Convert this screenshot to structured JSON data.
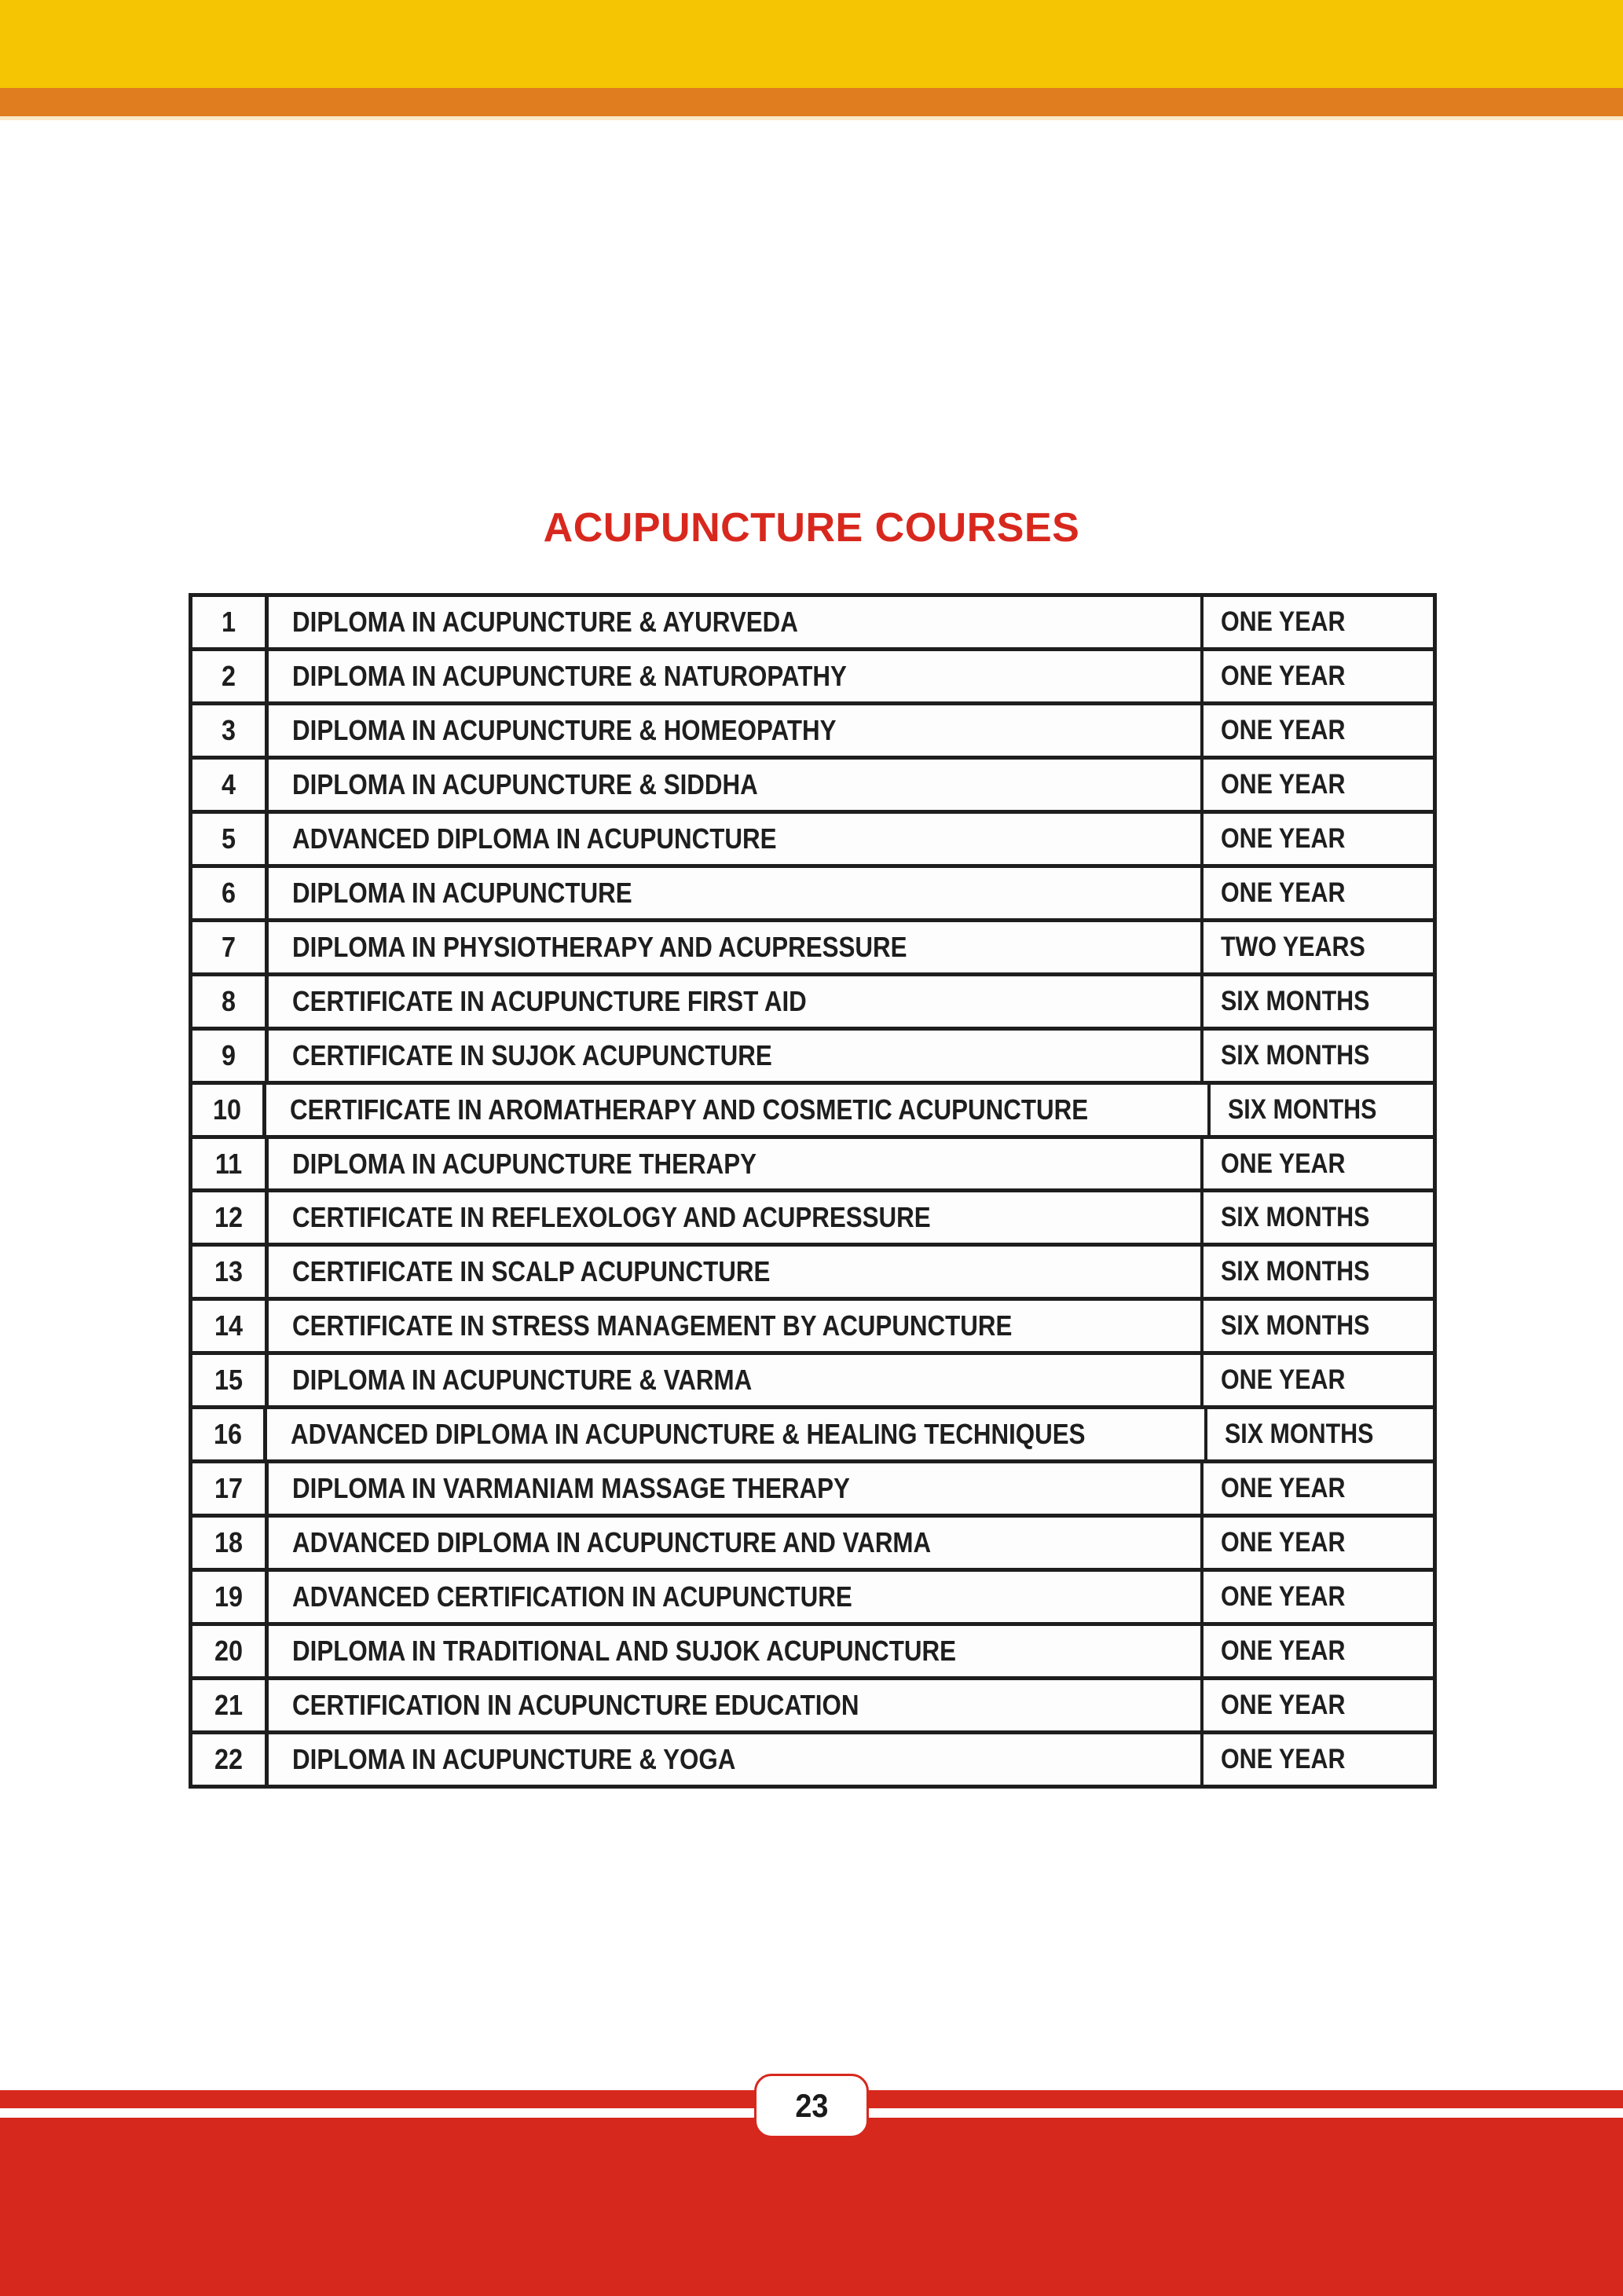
{
  "page": {
    "title": "ACUPUNCTURE COURSES",
    "page_number": "23"
  },
  "colors": {
    "yellow_bar": "#f5c402",
    "orange_bar": "#e07d1f",
    "red": "#d7281d",
    "title_red": "#d8281e",
    "table_border": "#1e1e1e"
  },
  "table": {
    "rows": [
      {
        "no": "1",
        "course": "DIPLOMA IN ACUPUNCTURE & AYURVEDA",
        "duration": "ONE YEAR"
      },
      {
        "no": "2",
        "course": "DIPLOMA IN ACUPUNCTURE & NATUROPATHY",
        "duration": "ONE YEAR"
      },
      {
        "no": "3",
        "course": "DIPLOMA IN ACUPUNCTURE & HOMEOPATHY",
        "duration": "ONE YEAR"
      },
      {
        "no": "4",
        "course": "DIPLOMA IN ACUPUNCTURE & SIDDHA",
        "duration": "ONE YEAR"
      },
      {
        "no": "5",
        "course": "ADVANCED DIPLOMA IN ACUPUNCTURE",
        "duration": "ONE YEAR"
      },
      {
        "no": "6",
        "course": "DIPLOMA IN ACUPUNCTURE",
        "duration": "ONE YEAR"
      },
      {
        "no": "7",
        "course": "DIPLOMA IN PHYSIOTHERAPY AND ACUPRESSURE",
        "duration": "TWO YEARS"
      },
      {
        "no": "8",
        "course": "CERTIFICATE IN ACUPUNCTURE FIRST AID",
        "duration": "SIX MONTHS"
      },
      {
        "no": "9",
        "course": "CERTIFICATE IN SUJOK ACUPUNCTURE",
        "duration": "SIX MONTHS"
      },
      {
        "no": "10",
        "course": "CERTIFICATE IN AROMATHERAPY AND COSMETIC ACUPUNCTURE",
        "duration": "SIX MONTHS"
      },
      {
        "no": "11",
        "course": "DIPLOMA IN ACUPUNCTURE THERAPY",
        "duration": "ONE YEAR"
      },
      {
        "no": "12",
        "course": "CERTIFICATE IN REFLEXOLOGY AND ACUPRESSURE",
        "duration": "SIX MONTHS"
      },
      {
        "no": "13",
        "course": "CERTIFICATE IN SCALP ACUPUNCTURE",
        "duration": "SIX MONTHS"
      },
      {
        "no": "14",
        "course": "CERTIFICATE IN STRESS MANAGEMENT BY ACUPUNCTURE",
        "duration": "SIX MONTHS"
      },
      {
        "no": "15",
        "course": "DIPLOMA IN ACUPUNCTURE & VARMA",
        "duration": "ONE YEAR"
      },
      {
        "no": "16",
        "course": "ADVANCED DIPLOMA IN ACUPUNCTURE & HEALING TECHNIQUES",
        "duration": "SIX MONTHS"
      },
      {
        "no": "17",
        "course": "DIPLOMA IN VARMANIAM MASSAGE THERAPY",
        "duration": "ONE YEAR"
      },
      {
        "no": "18",
        "course": "ADVANCED DIPLOMA IN ACUPUNCTURE AND VARMA",
        "duration": "ONE YEAR"
      },
      {
        "no": "19",
        "course": "ADVANCED CERTIFICATION IN ACUPUNCTURE",
        "duration": "ONE YEAR"
      },
      {
        "no": "20",
        "course": "DIPLOMA IN TRADITIONAL AND SUJOK ACUPUNCTURE",
        "duration": "ONE YEAR"
      },
      {
        "no": "21",
        "course": "CERTIFICATION IN ACUPUNCTURE EDUCATION",
        "duration": "ONE YEAR"
      },
      {
        "no": "22",
        "course": "DIPLOMA IN ACUPUNCTURE & YOGA",
        "duration": "ONE YEAR"
      }
    ]
  }
}
